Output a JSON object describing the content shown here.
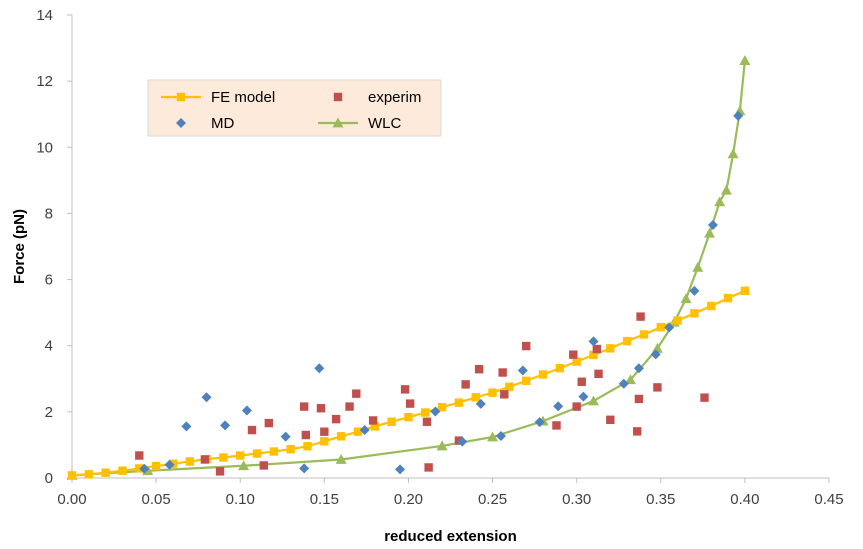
{
  "chart_data": {
    "type": "scatter",
    "xlabel": "reduced extension",
    "ylabel": "Force (pN)",
    "xlim": [
      0,
      0.45
    ],
    "ylim": [
      0,
      14
    ],
    "x_ticks": [
      "0.00",
      "0.05",
      "0.10",
      "0.15",
      "0.20",
      "0.25",
      "0.30",
      "0.35",
      "0.40",
      "0.45"
    ],
    "y_ticks": [
      "0",
      "2",
      "4",
      "6",
      "8",
      "10",
      "12",
      "14"
    ],
    "grid": false,
    "legend": {
      "placement": "top-left",
      "entries": [
        "FE model",
        "experim",
        "MD",
        "WLC"
      ]
    },
    "series": [
      {
        "name": "FE model",
        "marker": "square",
        "line": true,
        "color": "#FFC000",
        "line_color": "#FFC000",
        "x": [
          0.0,
          0.01,
          0.02,
          0.03,
          0.04,
          0.05,
          0.06,
          0.07,
          0.08,
          0.09,
          0.1,
          0.11,
          0.12,
          0.13,
          0.14,
          0.15,
          0.16,
          0.17,
          0.18,
          0.19,
          0.2,
          0.21,
          0.22,
          0.23,
          0.24,
          0.25,
          0.26,
          0.27,
          0.28,
          0.29,
          0.3,
          0.31,
          0.32,
          0.33,
          0.34,
          0.35,
          0.36,
          0.37,
          0.38,
          0.39,
          0.4
        ],
        "y": [
          0.08,
          0.11,
          0.16,
          0.22,
          0.29,
          0.36,
          0.43,
          0.5,
          0.57,
          0.62,
          0.68,
          0.74,
          0.8,
          0.87,
          0.96,
          1.11,
          1.26,
          1.4,
          1.56,
          1.7,
          1.84,
          1.98,
          2.14,
          2.28,
          2.44,
          2.58,
          2.76,
          2.94,
          3.13,
          3.32,
          3.52,
          3.72,
          3.92,
          4.14,
          4.34,
          4.56,
          4.76,
          4.98,
          5.2,
          5.44,
          5.66
        ]
      },
      {
        "name": "experim",
        "marker": "square",
        "line": false,
        "color": "#C0504D",
        "x": [
          0.04,
          0.079,
          0.088,
          0.107,
          0.114,
          0.117,
          0.138,
          0.139,
          0.148,
          0.15,
          0.157,
          0.165,
          0.169,
          0.179,
          0.198,
          0.201,
          0.211,
          0.212,
          0.23,
          0.234,
          0.242,
          0.256,
          0.257,
          0.27,
          0.288,
          0.298,
          0.3,
          0.303,
          0.312,
          0.313,
          0.32,
          0.336,
          0.337,
          0.338,
          0.348,
          0.376
        ],
        "y": [
          0.68,
          0.56,
          0.2,
          1.45,
          0.38,
          1.66,
          2.16,
          1.3,
          2.11,
          1.4,
          1.78,
          2.16,
          2.55,
          1.74,
          2.68,
          2.25,
          1.7,
          0.32,
          1.13,
          2.83,
          3.29,
          3.19,
          2.53,
          3.99,
          1.59,
          3.73,
          2.16,
          2.91,
          3.9,
          3.15,
          1.76,
          1.41,
          2.39,
          4.88,
          2.74,
          2.43
        ]
      },
      {
        "name": "MD",
        "marker": "diamond",
        "line": false,
        "color": "#4F81BD",
        "x": [
          0.043,
          0.058,
          0.068,
          0.08,
          0.091,
          0.104,
          0.127,
          0.138,
          0.147,
          0.174,
          0.195,
          0.216,
          0.232,
          0.243,
          0.255,
          0.268,
          0.278,
          0.289,
          0.304,
          0.31,
          0.328,
          0.337,
          0.347,
          0.355,
          0.37,
          0.381,
          0.396
        ],
        "y": [
          0.28,
          0.4,
          1.56,
          2.44,
          1.59,
          2.04,
          1.25,
          0.29,
          3.32,
          1.45,
          0.26,
          2.01,
          1.1,
          2.24,
          1.27,
          3.25,
          1.69,
          2.17,
          2.46,
          4.13,
          2.85,
          3.32,
          3.74,
          4.55,
          5.66,
          7.65,
          10.95
        ]
      },
      {
        "name": "WLC",
        "marker": "triangle",
        "line": true,
        "color": "#9BBB59",
        "line_color": "#9BBB59",
        "x": [
          0.0,
          0.045,
          0.102,
          0.16,
          0.22,
          0.25,
          0.28,
          0.31,
          0.332,
          0.348,
          0.358,
          0.365,
          0.372,
          0.379,
          0.385,
          0.389,
          0.393,
          0.397,
          0.4
        ],
        "y": [
          0.08,
          0.22,
          0.37,
          0.56,
          0.97,
          1.24,
          1.72,
          2.33,
          2.97,
          3.92,
          4.71,
          5.42,
          6.37,
          7.4,
          8.35,
          8.7,
          9.8,
          11.1,
          12.62
        ]
      }
    ]
  }
}
